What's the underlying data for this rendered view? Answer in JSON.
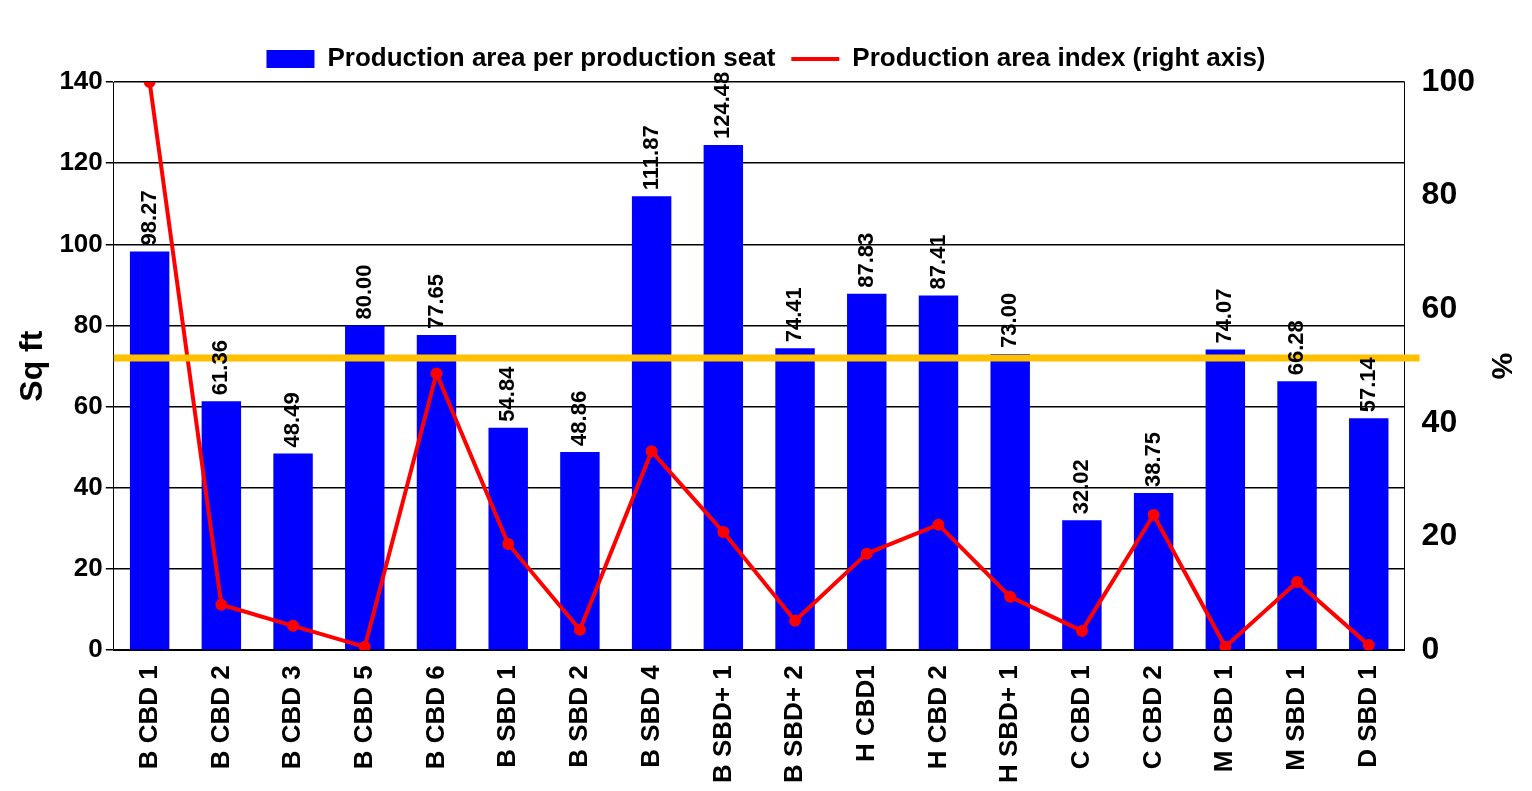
{
  "chart_data": {
    "type": "bar",
    "ylabel": "Sq ft",
    "y2label": "%",
    "categories": [
      "B CBD 1",
      "B CBD 2",
      "B CBD 3",
      "B CBD 5",
      "B CBD 6",
      "B SBD 1",
      "B SBD 2",
      "B SBD 4",
      "B SBD+ 1",
      "B SBD+ 2",
      "H CBD1",
      "H CBD 2",
      "H SBD+ 1",
      "C CBD 1",
      "C CBD 2",
      "M CBD 1",
      "M SBD 1",
      "D SBD 1"
    ],
    "series": [
      {
        "name": "Production area per production seat",
        "color": "#0000ff",
        "values": [
          98.27,
          61.36,
          48.49,
          80.0,
          77.65,
          54.84,
          48.86,
          111.87,
          124.48,
          74.41,
          87.83,
          87.41,
          73.0,
          32.02,
          38.75,
          74.07,
          66.28,
          57.14
        ],
        "value_labels": [
          "98.27",
          "61.36",
          "48.49",
          "80.00",
          "77.65",
          "54.84",
          "48.86",
          "111.87",
          "124.48",
          "74.41",
          "87.83",
          "87.41",
          "73.00",
          "32.02",
          "38.75",
          "74.07",
          "66.28",
          "57.14"
        ]
      },
      {
        "name": "Production area index (right axis)",
        "type": "line",
        "axis": "y2",
        "color": "#ff0000",
        "marker": "circle",
        "values": [
          100,
          8,
          4.3,
          0.6,
          48.7,
          18.7,
          3.6,
          35,
          20.8,
          5.2,
          17,
          22.1,
          9.4,
          3.4,
          23.8,
          0.6,
          12,
          0.9
        ]
      }
    ],
    "ylim": [
      0,
      140
    ],
    "yticks": [
      0,
      20,
      40,
      60,
      80,
      100,
      120,
      140
    ],
    "y2lim": [
      0,
      100
    ],
    "y2ticks": [
      0,
      20,
      40,
      60,
      80,
      100
    ],
    "ref_lines": [
      {
        "axis": "y",
        "value": 72,
        "color": "#ffc000"
      }
    ],
    "grid": "y",
    "legend": "top"
  }
}
